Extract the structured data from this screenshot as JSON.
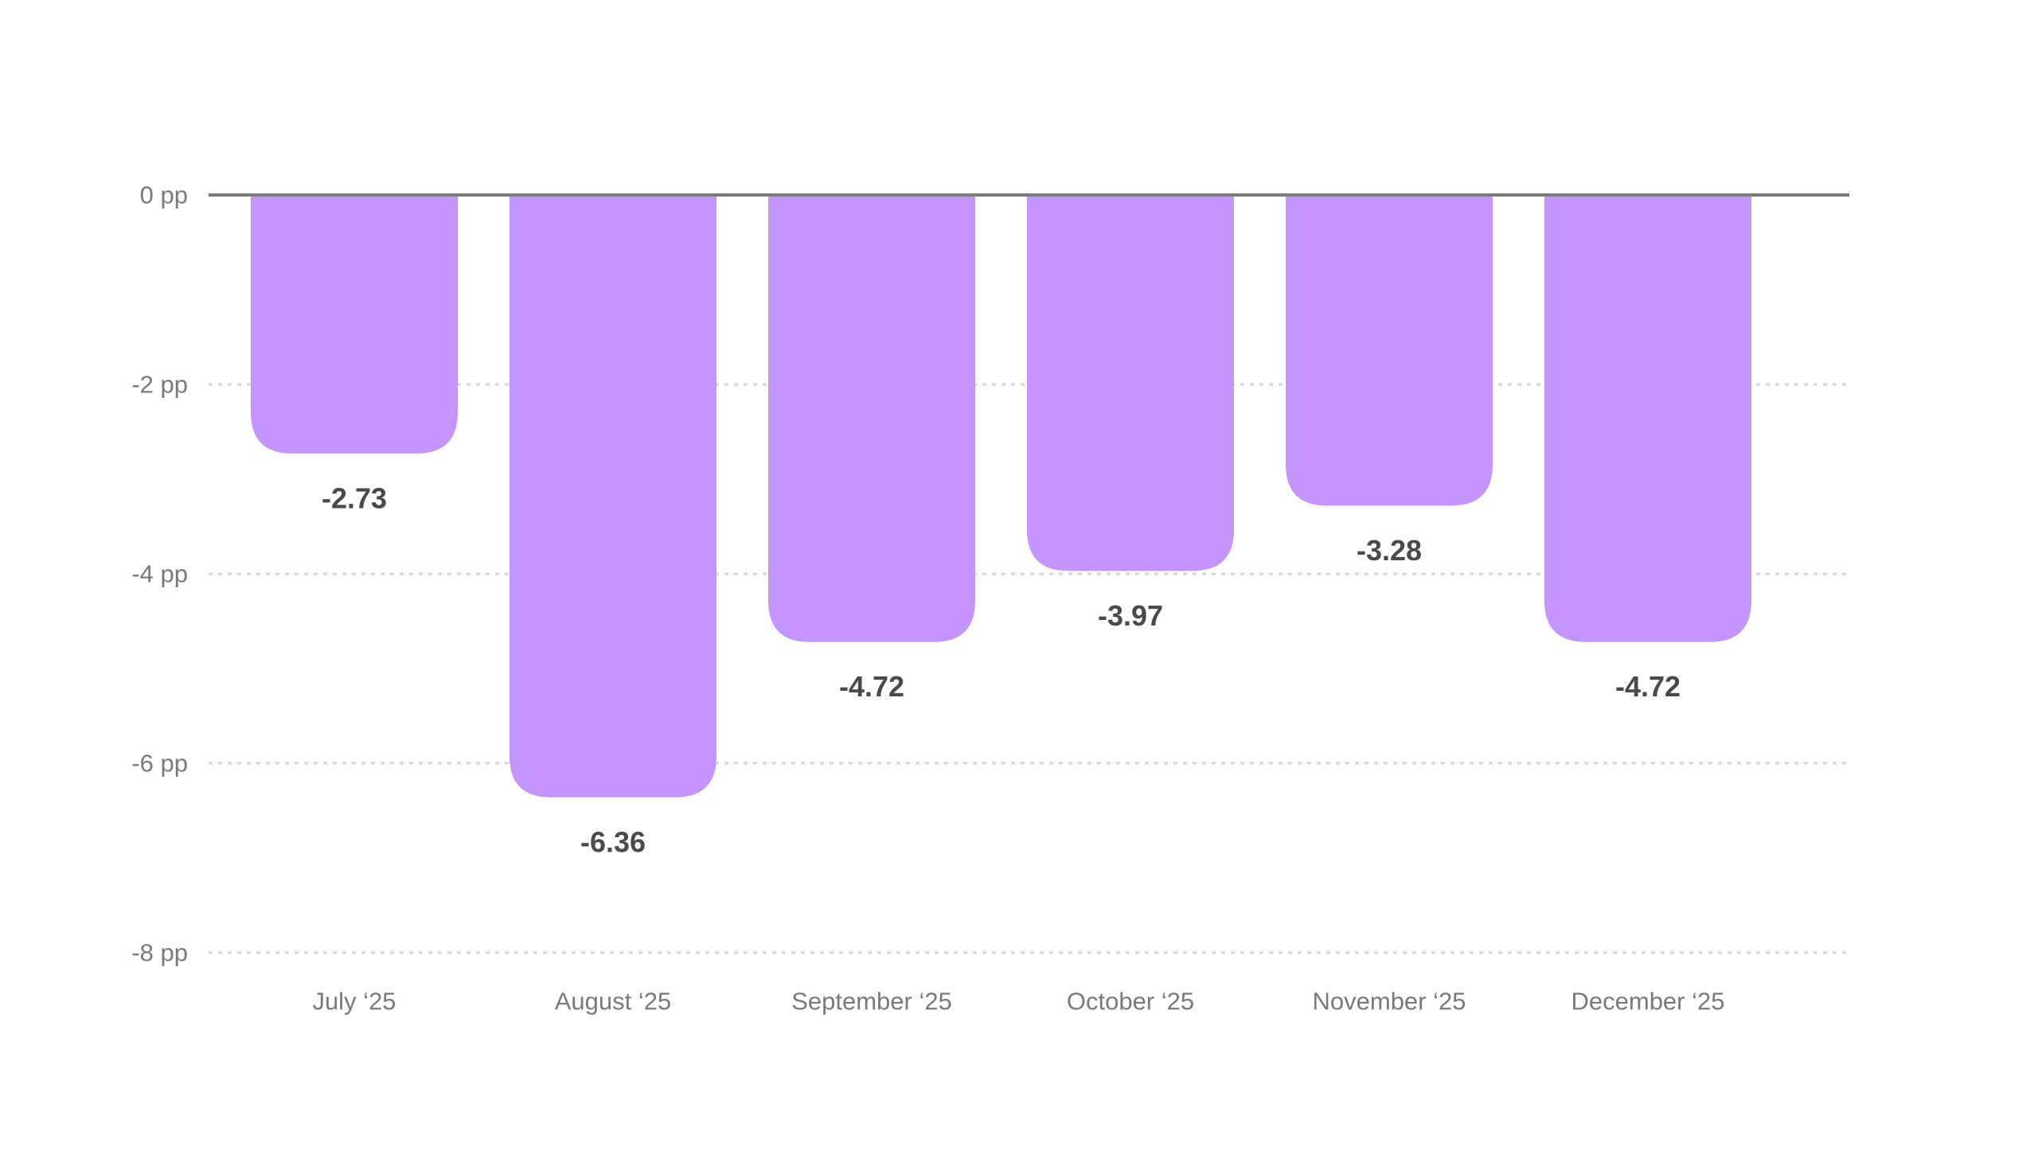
{
  "chart_data": {
    "type": "bar",
    "categories": [
      "July ‘25",
      "August ‘25",
      "September ‘25",
      "October ‘25",
      "November ‘25",
      "December ‘25"
    ],
    "values": [
      -2.73,
      -6.36,
      -4.72,
      -3.97,
      -3.28,
      -4.72
    ],
    "value_labels": [
      "-2.73",
      "-6.36",
      "-4.72",
      "-3.97",
      "-3.28",
      "-4.72"
    ],
    "y_ticks": [
      0,
      -2,
      -4,
      -6,
      -8
    ],
    "y_tick_labels": [
      "0 pp",
      "-2 pp",
      "-4 pp",
      "-6 pp",
      "-8 pp"
    ],
    "ylim": [
      -8,
      0
    ],
    "grid": true,
    "legend": "none",
    "colors": {
      "bar": "#c495fd",
      "baseline": "#7a7a7a",
      "grid": "#d6d6d6"
    }
  }
}
